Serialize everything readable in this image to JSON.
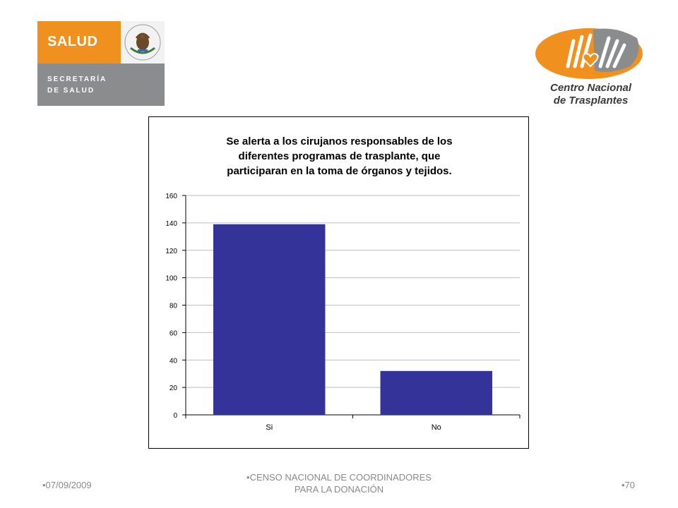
{
  "header": {
    "left_logo": {
      "word": "SALUD",
      "line1": "SECRETARÍA",
      "line2": "DE SALUD"
    },
    "right_logo": {
      "line1": "Centro Nacional",
      "line2": "de Trasplantes"
    }
  },
  "chart_data": {
    "type": "bar",
    "title_lines": [
      "Se alerta a los cirujanos responsables de los",
      "diferentes programas de trasplante, que",
      "participaran en la toma de órganos y tejidos."
    ],
    "categories": [
      "Si",
      "No"
    ],
    "values": [
      139,
      32
    ],
    "ylim": [
      0,
      160
    ],
    "yticks": [
      0,
      20,
      40,
      60,
      80,
      100,
      120,
      140,
      160
    ],
    "grid": true,
    "bar_color": "#333399"
  },
  "footer": {
    "date": "•07/09/2009",
    "center_line1": "•CENSO NACIONAL DE COORDINADORES",
    "center_line2": "PARA LA DONACIÓN",
    "page": "•70"
  }
}
